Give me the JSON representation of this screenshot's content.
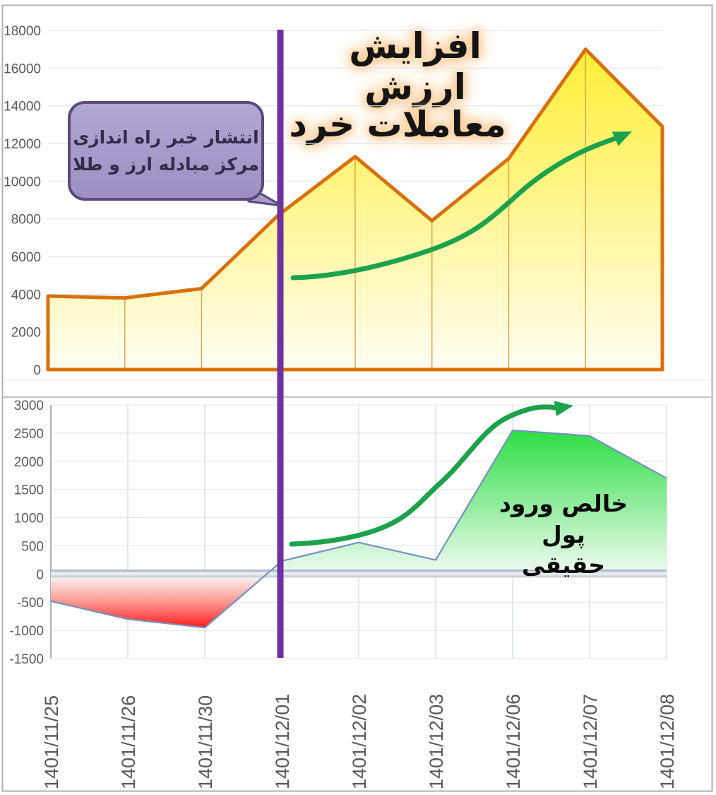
{
  "texts": {
    "title_line1": "افزایش ارزش",
    "title_line2": "معاملات خرد",
    "callout_line1": "انتشار خبر راه اندازی",
    "callout_line2": "مرکز مبادله ارز و طلا",
    "net_line1": "خالص ورود",
    "net_line2": "پول حقیقی"
  },
  "chart_data": [
    {
      "type": "area",
      "title": "افزایش ارزش معاملات خرد",
      "categories": [
        "1401/11/25",
        "1401/11/26",
        "1401/11/30",
        "1401/12/01",
        "1401/12/02",
        "1401/12/03",
        "1401/12/06",
        "1401/12/07",
        "1401/12/08"
      ],
      "values": [
        3900,
        3800,
        4300,
        8200,
        11300,
        7900,
        11200,
        17000,
        12900
      ],
      "ylim": [
        0,
        18000
      ],
      "yticks": [
        18000,
        16000,
        14000,
        12000,
        10000,
        8000,
        6000,
        4000,
        2000,
        0
      ],
      "grid": "horizontal",
      "line_color": "#d9700e",
      "dropline_color": "#e3a04a",
      "fill_top": "#ffee2e",
      "fill_bottom": "#fffdf3",
      "annotation_vline_category": "1401/12/01",
      "annotation_vline_color": "#7030a0",
      "callout_text": "انتشار خبر راه اندازی مرکز مبادله ارز و طلا",
      "callout_fill": "#a79bc9",
      "callout_border": "#5c4a7d",
      "trend_arrow_color": "#1ca24c"
    },
    {
      "type": "area",
      "title": "خالص ورود پول حقیقی",
      "categories": [
        "1401/11/25",
        "1401/11/26",
        "1401/11/30",
        "1401/12/01",
        "1401/12/02",
        "1401/12/03",
        "1401/12/06",
        "1401/12/07",
        "1401/12/08"
      ],
      "values": [
        -480,
        -800,
        -950,
        230,
        560,
        250,
        2550,
        2450,
        1700
      ],
      "ylim": [
        -1500,
        3000
      ],
      "yticks": [
        3000,
        2500,
        2000,
        1500,
        1000,
        500,
        0,
        -500,
        -1000,
        -1500
      ],
      "grid": "both",
      "line_color": "#7491c0",
      "pos_fill_top": "#22dc3b",
      "pos_fill_bottom": "#f2fbf3",
      "neg_fill_top": "#fafbfc",
      "neg_fill_bottom": "#ff1111",
      "zero_band": true,
      "annotation_vline_category": "1401/12/01",
      "annotation_vline_color": "#7030a0",
      "trend_arrow_color": "#1ca24c",
      "axis_text_color": "#595959"
    }
  ]
}
